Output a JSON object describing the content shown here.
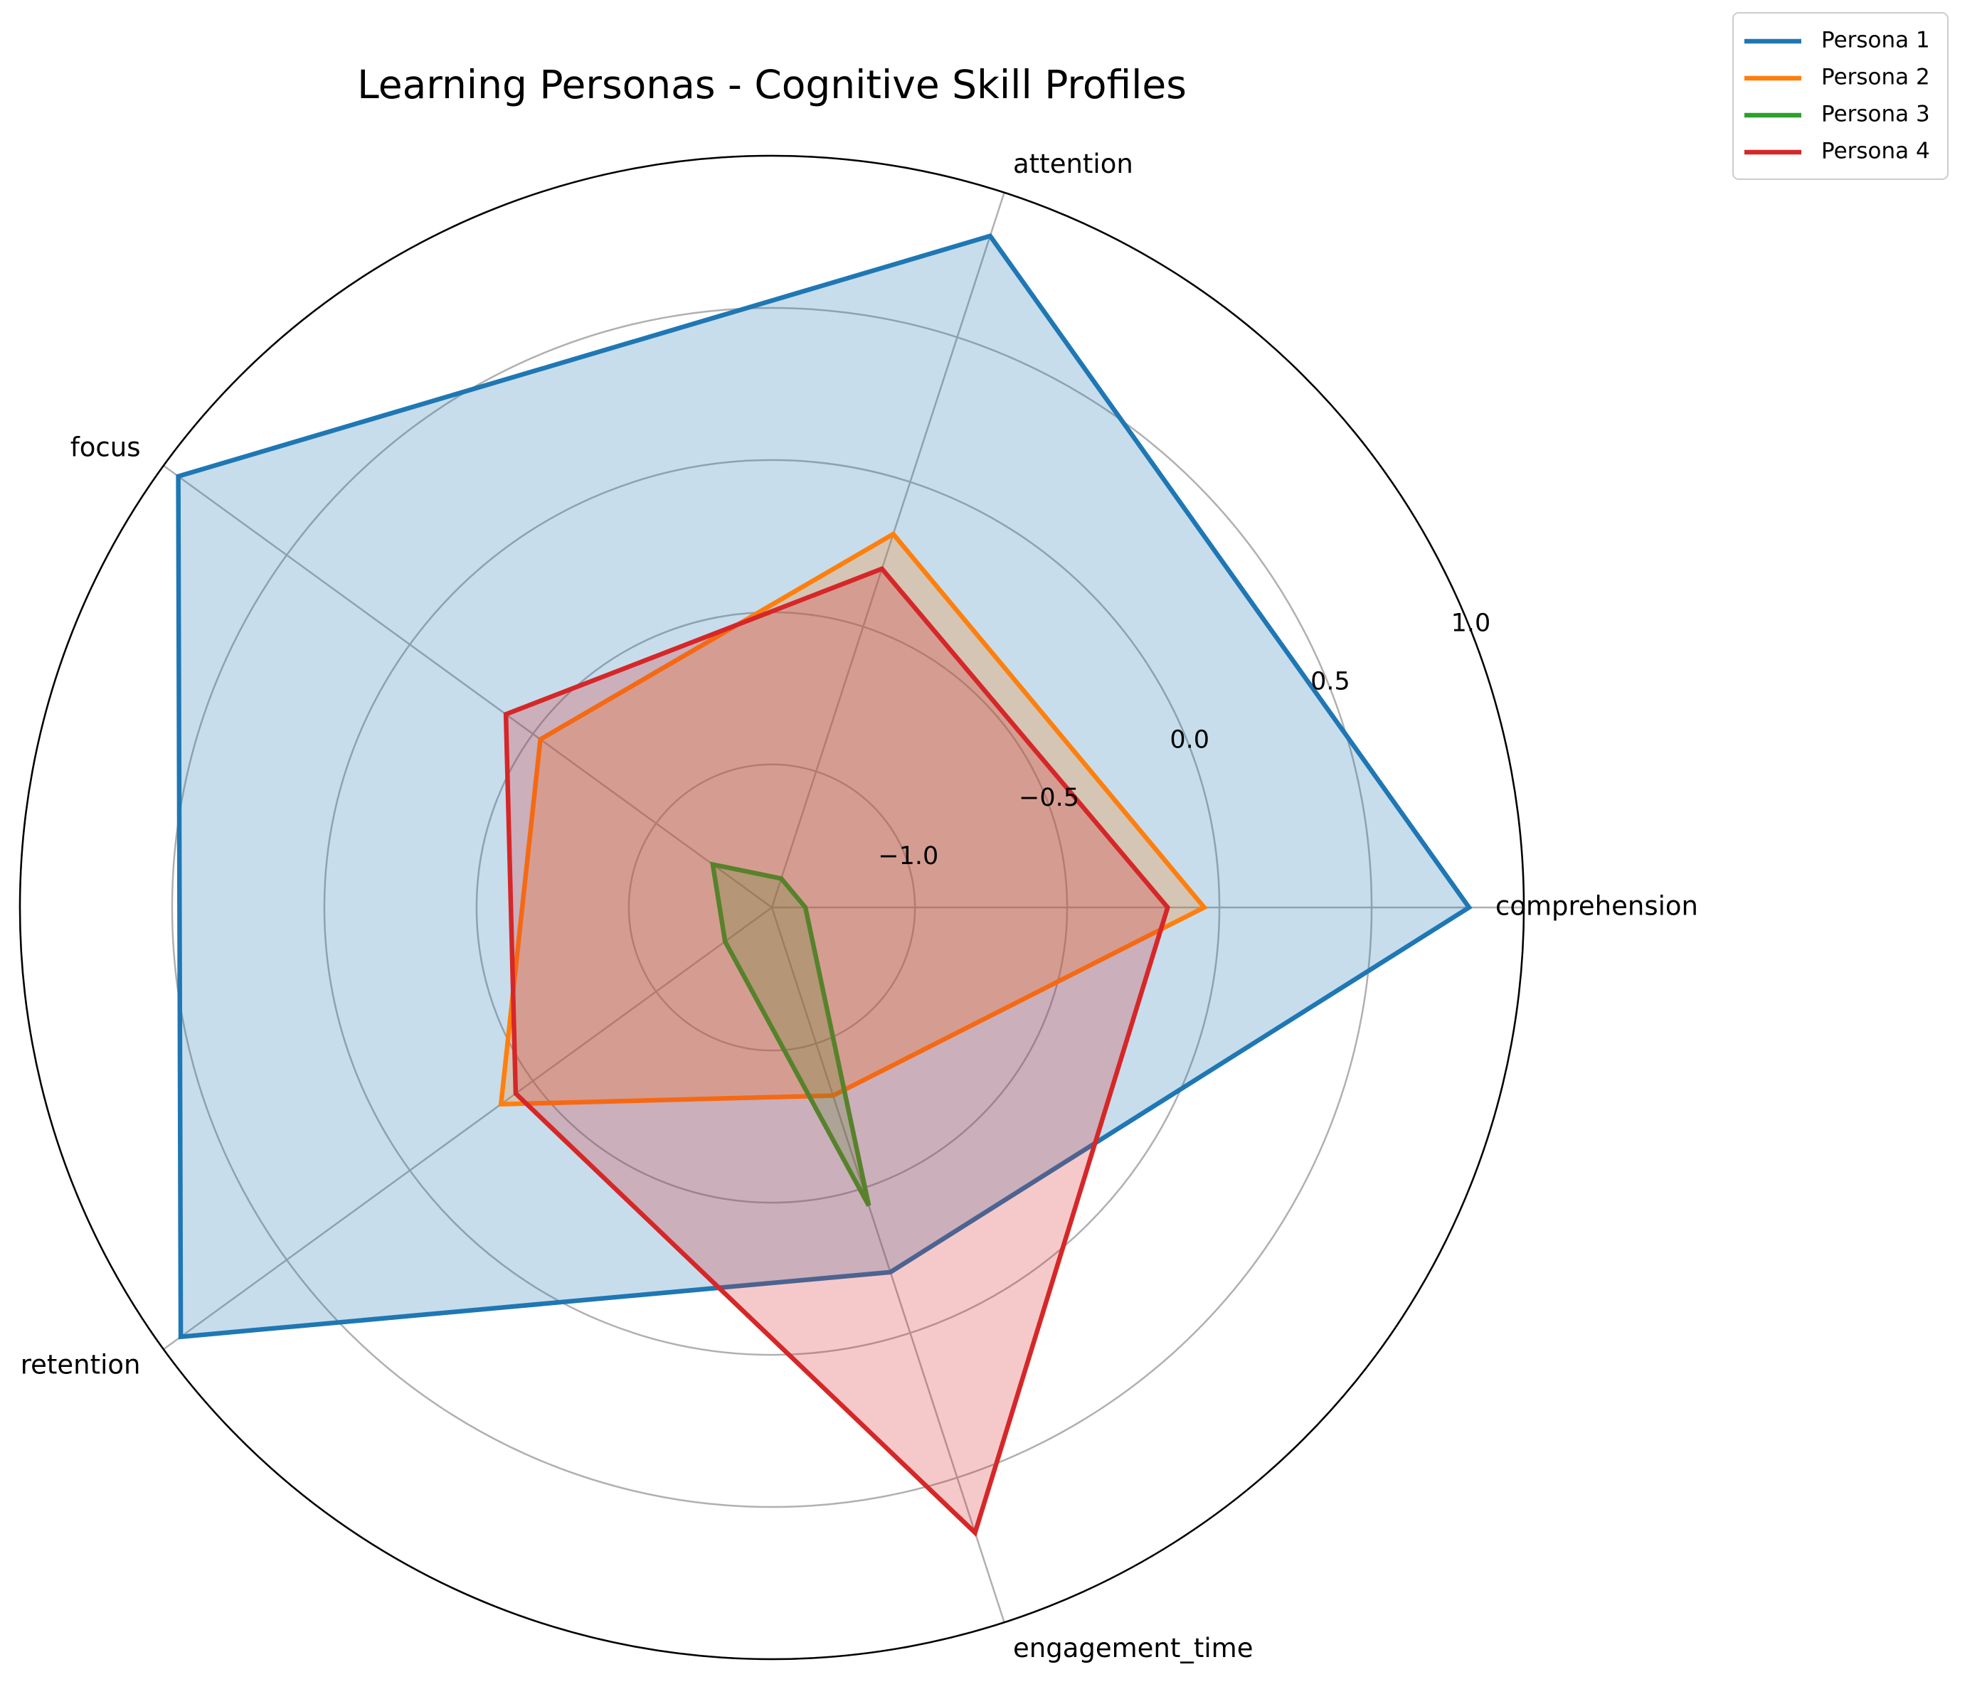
{
  "chart_data": {
    "type": "radar",
    "title": "Learning Personas - Cognitive Skill Profiles",
    "categories": [
      "comprehension",
      "attention",
      "focus",
      "retention",
      "engagement_time"
    ],
    "radial_ticks": [
      "−1.0",
      "−0.5",
      "0.0",
      "0.5",
      "1.0"
    ],
    "radial_tick_values": [
      -1.0,
      -0.5,
      0.0,
      0.5,
      1.0
    ],
    "rlim": [
      -1.47,
      1.0
    ],
    "grid": true,
    "legend_position": "top-right",
    "series": [
      {
        "name": "Persona 1",
        "color": "#1f77b4",
        "values": [
          0.82,
          0.85,
          0.94,
          0.93,
          -0.21
        ],
        "fill_opacity": 0.25
      },
      {
        "name": "Persona 2",
        "color": "#ff7f0e",
        "values": [
          -0.05,
          -0.18,
          -0.53,
          -0.37,
          -0.82
        ],
        "fill_opacity": 0.25
      },
      {
        "name": "Persona 3",
        "color": "#2ca02c",
        "values": [
          -1.36,
          -1.37,
          -1.23,
          -1.28,
          -0.44
        ],
        "fill_opacity": 0.25
      },
      {
        "name": "Persona 4",
        "color": "#d62728",
        "values": [
          -0.17,
          -0.3,
          -0.39,
          -0.43,
          0.69
        ],
        "fill_opacity": 0.25
      }
    ]
  }
}
